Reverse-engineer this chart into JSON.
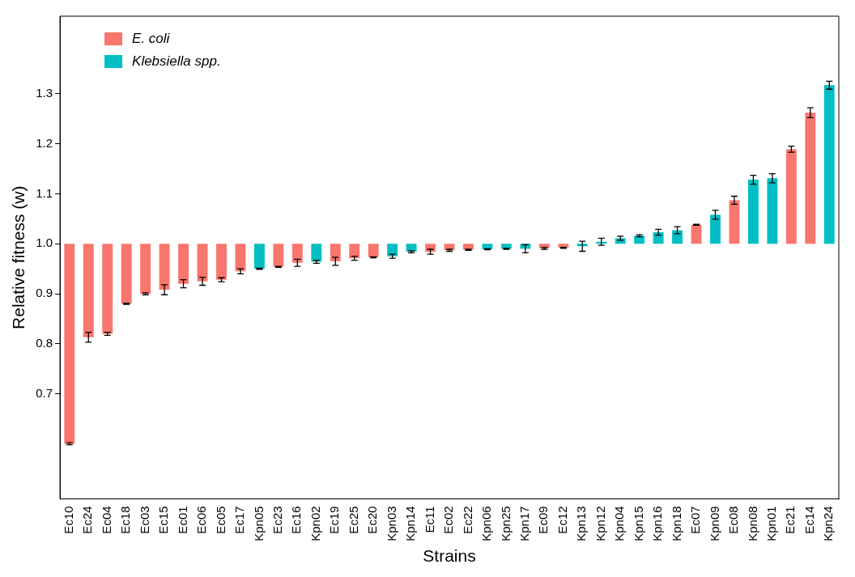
{
  "chart_data": {
    "type": "bar",
    "xlabel": "Strains",
    "ylabel": "Relative fitness (w)",
    "categories": [
      "Ec10",
      "Ec24",
      "Ec04",
      "Ec18",
      "Ec03",
      "Ec15",
      "Ec01",
      "Ec06",
      "Ec05",
      "Ec17",
      "Kpn05",
      "Ec23",
      "Ec16",
      "Kpn02",
      "Ec19",
      "Ec25",
      "Ec20",
      "Kpn03",
      "Kpn14",
      "Ec11",
      "Ec02",
      "Ec22",
      "Kpn06",
      "Kpn25",
      "Kpn17",
      "Ec09",
      "Ec12",
      "Kpn13",
      "Kpn12",
      "Kpn04",
      "Kpn15",
      "Kpn16",
      "Kpn18",
      "Ec07",
      "Kpn09",
      "Ec08",
      "Kpn08",
      "Kpn01",
      "Ec21",
      "Ec14",
      "Kpn24"
    ],
    "series": [
      {
        "name": "E. coli",
        "color": "#f8766d",
        "base": [
          1,
          1,
          1,
          1,
          1,
          1,
          1,
          1,
          1,
          1,
          null,
          1,
          1,
          null,
          1,
          1,
          1,
          null,
          null,
          1,
          1,
          1,
          null,
          null,
          null,
          1,
          1,
          null,
          null,
          null,
          null,
          null,
          null,
          1,
          null,
          1,
          null,
          null,
          1,
          1,
          null
        ],
        "values": [
          -0.4,
          -0.187,
          -0.18,
          -0.12,
          -0.1,
          -0.092,
          -0.08,
          -0.075,
          -0.072,
          -0.055,
          null,
          -0.046,
          -0.038,
          null,
          -0.035,
          -0.029,
          -0.027,
          null,
          null,
          -0.016,
          -0.013,
          -0.012,
          null,
          null,
          null,
          -0.009,
          -0.008,
          null,
          null,
          null,
          null,
          null,
          null,
          0.038,
          null,
          0.087,
          null,
          null,
          0.189,
          0.262,
          null
        ],
        "errors": [
          0.002,
          0.01,
          0.003,
          0.001,
          0.002,
          0.01,
          0.008,
          0.008,
          0.004,
          0.005,
          null,
          0.001,
          0.007,
          null,
          0.008,
          0.004,
          0.001,
          null,
          null,
          0.005,
          0.002,
          0.001,
          null,
          null,
          null,
          0.002,
          0.001,
          null,
          null,
          null,
          null,
          null,
          null,
          0.001,
          null,
          0.008,
          null,
          null,
          0.006,
          0.01,
          null
        ]
      },
      {
        "name": "Klebsiella spp.",
        "color": "#00bfc4",
        "base": [
          null,
          null,
          null,
          null,
          null,
          null,
          null,
          null,
          null,
          null,
          1,
          null,
          null,
          1,
          null,
          null,
          null,
          1,
          1,
          null,
          null,
          null,
          1,
          1,
          1,
          null,
          null,
          1,
          1,
          1,
          1,
          1,
          1,
          null,
          1,
          null,
          1,
          1,
          null,
          null,
          1
        ],
        "values": [
          null,
          null,
          null,
          null,
          null,
          null,
          null,
          null,
          null,
          null,
          -0.05,
          null,
          null,
          -0.036,
          null,
          null,
          null,
          -0.025,
          -0.016,
          null,
          null,
          null,
          -0.011,
          -0.01,
          -0.01,
          null,
          null,
          -0.005,
          0.004,
          0.011,
          0.016,
          0.023,
          0.027,
          null,
          0.058,
          null,
          0.128,
          0.131,
          null,
          null,
          0.317
        ],
        "errors": [
          null,
          null,
          null,
          null,
          null,
          null,
          null,
          null,
          null,
          null,
          0.001,
          null,
          null,
          0.003,
          null,
          null,
          null,
          0.004,
          0.002,
          null,
          null,
          null,
          0.001,
          0.001,
          0.008,
          null,
          null,
          0.01,
          0.007,
          0.004,
          0.002,
          0.006,
          0.007,
          null,
          0.009,
          null,
          0.009,
          0.009,
          null,
          null,
          0.008
        ]
      }
    ],
    "ylim": [
      0.49,
      1.455
    ],
    "yticks": [
      0.7,
      0.8,
      0.9,
      {
        "value": 1.0,
        "label": "1.0"
      },
      1.1,
      1.2,
      1.3
    ],
    "grid": false,
    "legend": "top left"
  }
}
